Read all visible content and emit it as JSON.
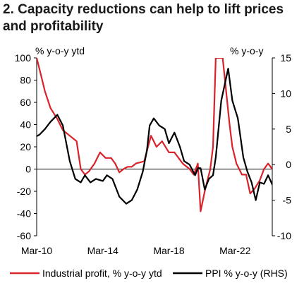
{
  "title": "2. Capacity reductions can help to lift prices and profitability",
  "chart_data": {
    "type": "line",
    "left_axis": {
      "unit_label": "% y-o-y ytd",
      "ylim": [
        -60,
        100
      ],
      "ticks": [
        100,
        80,
        60,
        40,
        20,
        0,
        -20,
        -40,
        -60
      ],
      "tick_labels": [
        "100",
        "80",
        "60",
        "40",
        "20",
        "0",
        "-20",
        "-40",
        "-60"
      ]
    },
    "right_axis": {
      "unit_label": "% y-o-y",
      "ylim": [
        -10,
        15
      ],
      "ticks": [
        15,
        10,
        5,
        0,
        -5,
        -10
      ],
      "tick_labels": [
        "15",
        "10",
        "5",
        "0",
        "-5",
        "-10"
      ]
    },
    "x_axis": {
      "range": [
        "2010-03",
        "2024-06"
      ],
      "ticks": [
        "2010-03",
        "2014-03",
        "2018-03",
        "2022-03"
      ],
      "tick_labels": [
        "Mar-10",
        "Mar-14",
        "Mar-18",
        "Mar-22"
      ]
    },
    "legend_position": "bottom",
    "series": [
      {
        "name": "Industrial profit, % y-o-y ytd",
        "axis": "left",
        "color": "#d9232a",
        "points": [
          [
            "2010-03",
            100
          ],
          [
            "2010-06",
            85
          ],
          [
            "2010-09",
            70
          ],
          [
            "2011-01",
            55
          ],
          [
            "2011-06",
            45
          ],
          [
            "2011-10",
            35
          ],
          [
            "2012-03",
            30
          ],
          [
            "2012-08",
            25
          ],
          [
            "2012-11",
            0
          ],
          [
            "2013-02",
            -5
          ],
          [
            "2013-05",
            -2
          ],
          [
            "2013-09",
            5
          ],
          [
            "2014-01",
            15
          ],
          [
            "2014-05",
            10
          ],
          [
            "2014-09",
            10
          ],
          [
            "2014-12",
            5
          ],
          [
            "2015-03",
            -3
          ],
          [
            "2015-06",
            0
          ],
          [
            "2015-09",
            2
          ],
          [
            "2015-12",
            2
          ],
          [
            "2016-03",
            5
          ],
          [
            "2016-06",
            6
          ],
          [
            "2016-09",
            7
          ],
          [
            "2017-02",
            30
          ],
          [
            "2017-06",
            20
          ],
          [
            "2017-10",
            25
          ],
          [
            "2018-03",
            15
          ],
          [
            "2018-07",
            15
          ],
          [
            "2018-10",
            10
          ],
          [
            "2019-01",
            5
          ],
          [
            "2019-06",
            0
          ],
          [
            "2019-09",
            -5
          ],
          [
            "2019-12",
            5
          ],
          [
            "2020-02",
            -38
          ],
          [
            "2020-05",
            -20
          ],
          [
            "2020-09",
            0
          ],
          [
            "2020-11",
            20
          ],
          [
            "2021-01",
            100
          ],
          [
            "2021-06",
            100
          ],
          [
            "2021-11",
            40
          ],
          [
            "2022-01",
            20
          ],
          [
            "2022-04",
            5
          ],
          [
            "2022-08",
            -5
          ],
          [
            "2022-11",
            -5
          ],
          [
            "2023-02",
            -22
          ],
          [
            "2023-05",
            -18
          ],
          [
            "2023-09",
            -10
          ],
          [
            "2023-12",
            0
          ],
          [
            "2024-03",
            5
          ],
          [
            "2024-06",
            0
          ]
        ]
      },
      {
        "name": "PPI % y-o-y (RHS)",
        "axis": "right",
        "color": "#000000",
        "points": [
          [
            "2010-03",
            4.0
          ],
          [
            "2010-05",
            4.2
          ],
          [
            "2010-09",
            5.0
          ],
          [
            "2011-01",
            6.0
          ],
          [
            "2011-06",
            7.0
          ],
          [
            "2011-10",
            5.5
          ],
          [
            "2012-03",
            0.5
          ],
          [
            "2012-07",
            -2.0
          ],
          [
            "2012-11",
            -2.5
          ],
          [
            "2013-02",
            -1.5
          ],
          [
            "2013-06",
            -2.5
          ],
          [
            "2013-10",
            -2.0
          ],
          [
            "2014-03",
            -2.3
          ],
          [
            "2014-06",
            -1.5
          ],
          [
            "2014-10",
            -2.0
          ],
          [
            "2015-03",
            -4.5
          ],
          [
            "2015-08",
            -5.5
          ],
          [
            "2015-12",
            -5.0
          ],
          [
            "2016-04",
            -3.5
          ],
          [
            "2016-08",
            -1.0
          ],
          [
            "2016-11",
            2.0
          ],
          [
            "2017-01",
            5.5
          ],
          [
            "2017-04",
            6.5
          ],
          [
            "2017-08",
            5.5
          ],
          [
            "2017-12",
            5.0
          ],
          [
            "2018-03",
            3.0
          ],
          [
            "2018-07",
            4.5
          ],
          [
            "2018-11",
            2.5
          ],
          [
            "2019-02",
            0.5
          ],
          [
            "2019-06",
            0.0
          ],
          [
            "2019-10",
            -1.5
          ],
          [
            "2019-12",
            -0.5
          ],
          [
            "2020-02",
            -0.5
          ],
          [
            "2020-05",
            -3.5
          ],
          [
            "2020-08",
            -2.0
          ],
          [
            "2020-11",
            -1.5
          ],
          [
            "2021-01",
            1.0
          ],
          [
            "2021-05",
            9.0
          ],
          [
            "2021-10",
            13.5
          ],
          [
            "2022-01",
            9.0
          ],
          [
            "2022-05",
            6.5
          ],
          [
            "2022-09",
            1.0
          ],
          [
            "2022-12",
            -1.0
          ],
          [
            "2023-03",
            -2.5
          ],
          [
            "2023-06",
            -5.0
          ],
          [
            "2023-09",
            -2.5
          ],
          [
            "2023-12",
            -2.7
          ],
          [
            "2024-03",
            -1.5
          ],
          [
            "2024-06",
            -2.8
          ],
          [
            "2024-09",
            -2.0
          ],
          [
            "2024-11",
            -3.0
          ]
        ]
      }
    ]
  }
}
